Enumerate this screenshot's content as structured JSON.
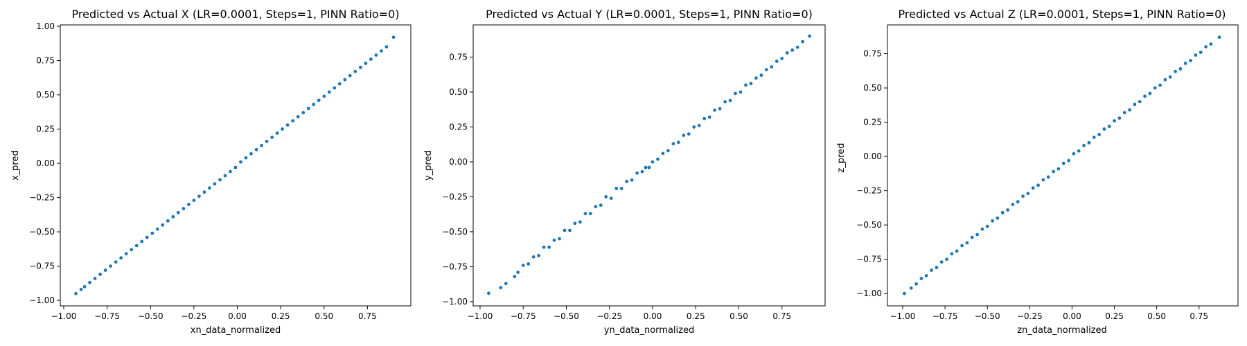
{
  "chart_data": [
    {
      "type": "scatter",
      "title": "Predicted vs Actual X (LR=0.0001, Steps=1, PINN Ratio=0)",
      "xlabel": "xn_data_normalized",
      "ylabel": "x_pred",
      "xlim": [
        -1.02,
        1.0
      ],
      "ylim": [
        -1.04,
        1.01
      ],
      "x_ticks": [
        -1.0,
        -0.75,
        -0.5,
        -0.25,
        0.0,
        0.25,
        0.5,
        0.75
      ],
      "x_tick_labels": [
        "−1.00",
        "−0.75",
        "−0.50",
        "−0.25",
        "0.00",
        "0.25",
        "0.50",
        "0.75"
      ],
      "y_ticks": [
        -1.0,
        -0.75,
        -0.5,
        -0.25,
        0.0,
        0.25,
        0.5,
        0.75,
        1.0
      ],
      "y_tick_labels": [
        "−1.00",
        "−0.75",
        "−0.50",
        "−0.25",
        "0.00",
        "0.25",
        "0.50",
        "0.75",
        "1.00"
      ],
      "grid": false,
      "color": "#1f77b4",
      "points": {
        "x": [
          -0.93,
          -0.9,
          -0.88,
          -0.85,
          -0.82,
          -0.79,
          -0.76,
          -0.73,
          -0.7,
          -0.67,
          -0.64,
          -0.61,
          -0.58,
          -0.55,
          -0.52,
          -0.49,
          -0.46,
          -0.43,
          -0.4,
          -0.37,
          -0.34,
          -0.31,
          -0.28,
          -0.25,
          -0.22,
          -0.19,
          -0.16,
          -0.13,
          -0.1,
          -0.07,
          -0.04,
          -0.01,
          0.02,
          0.05,
          0.08,
          0.11,
          0.14,
          0.17,
          0.2,
          0.23,
          0.26,
          0.29,
          0.32,
          0.35,
          0.38,
          0.41,
          0.44,
          0.47,
          0.5,
          0.53,
          0.56,
          0.59,
          0.62,
          0.65,
          0.68,
          0.71,
          0.74,
          0.77,
          0.8,
          0.83,
          0.86,
          0.9
        ],
        "y": [
          -0.95,
          -0.92,
          -0.9,
          -0.87,
          -0.84,
          -0.81,
          -0.78,
          -0.75,
          -0.72,
          -0.69,
          -0.66,
          -0.63,
          -0.6,
          -0.57,
          -0.54,
          -0.51,
          -0.48,
          -0.45,
          -0.42,
          -0.39,
          -0.36,
          -0.33,
          -0.3,
          -0.27,
          -0.24,
          -0.21,
          -0.18,
          -0.15,
          -0.12,
          -0.09,
          -0.06,
          -0.03,
          0.01,
          0.04,
          0.07,
          0.1,
          0.13,
          0.16,
          0.19,
          0.22,
          0.25,
          0.28,
          0.31,
          0.34,
          0.37,
          0.4,
          0.43,
          0.46,
          0.49,
          0.52,
          0.55,
          0.58,
          0.61,
          0.64,
          0.67,
          0.7,
          0.73,
          0.76,
          0.79,
          0.82,
          0.85,
          0.92
        ]
      }
    },
    {
      "type": "scatter",
      "title": "Predicted vs Actual Y (LR=0.0001, Steps=1, PINN Ratio=0)",
      "xlabel": "yn_data_normalized",
      "ylabel": "y_pred",
      "xlim": [
        -1.04,
        1.0
      ],
      "ylim": [
        -1.03,
        0.98
      ],
      "x_ticks": [
        -1.0,
        -0.75,
        -0.5,
        -0.25,
        0.0,
        0.25,
        0.5,
        0.75
      ],
      "x_tick_labels": [
        "−1.00",
        "−0.75",
        "−0.50",
        "−0.25",
        "0.00",
        "0.25",
        "0.50",
        "0.75"
      ],
      "y_ticks": [
        -1.0,
        -0.75,
        -0.5,
        -0.25,
        0.0,
        0.25,
        0.5,
        0.75
      ],
      "y_tick_labels": [
        "−1.00",
        "−0.75",
        "−0.50",
        "−0.25",
        "0.00",
        "0.25",
        "0.50",
        "0.75"
      ],
      "grid": false,
      "color": "#1f77b4",
      "points": {
        "x": [
          -0.95,
          -0.88,
          -0.85,
          -0.8,
          -0.78,
          -0.75,
          -0.72,
          -0.69,
          -0.66,
          -0.63,
          -0.6,
          -0.57,
          -0.54,
          -0.51,
          -0.48,
          -0.45,
          -0.42,
          -0.39,
          -0.36,
          -0.33,
          -0.3,
          -0.27,
          -0.24,
          -0.21,
          -0.18,
          -0.15,
          -0.12,
          -0.09,
          -0.06,
          -0.04,
          -0.02,
          0.0,
          0.03,
          0.06,
          0.09,
          0.12,
          0.15,
          0.18,
          0.21,
          0.24,
          0.27,
          0.3,
          0.33,
          0.36,
          0.39,
          0.42,
          0.45,
          0.48,
          0.51,
          0.54,
          0.57,
          0.6,
          0.63,
          0.66,
          0.69,
          0.72,
          0.75,
          0.78,
          0.81,
          0.84,
          0.87,
          0.91
        ],
        "y": [
          -0.94,
          -0.9,
          -0.87,
          -0.82,
          -0.79,
          -0.74,
          -0.73,
          -0.68,
          -0.67,
          -0.61,
          -0.61,
          -0.56,
          -0.55,
          -0.49,
          -0.49,
          -0.44,
          -0.43,
          -0.37,
          -0.37,
          -0.32,
          -0.31,
          -0.25,
          -0.26,
          -0.19,
          -0.19,
          -0.14,
          -0.13,
          -0.08,
          -0.07,
          -0.04,
          -0.04,
          0.0,
          0.02,
          0.06,
          0.08,
          0.13,
          0.14,
          0.19,
          0.2,
          0.25,
          0.26,
          0.31,
          0.32,
          0.37,
          0.38,
          0.43,
          0.44,
          0.49,
          0.5,
          0.55,
          0.56,
          0.6,
          0.62,
          0.66,
          0.68,
          0.72,
          0.74,
          0.78,
          0.8,
          0.82,
          0.86,
          0.9
        ]
      }
    },
    {
      "type": "scatter",
      "title": "Predicted vs Actual Z (LR=0.0001, Steps=1, PINN Ratio=0)",
      "xlabel": "zn_data_normalized",
      "ylabel": "z_pred",
      "xlim": [
        -1.09,
        0.98
      ],
      "ylim": [
        -1.09,
        0.96
      ],
      "x_ticks": [
        -1.0,
        -0.75,
        -0.5,
        -0.25,
        0.0,
        0.25,
        0.5,
        0.75
      ],
      "x_tick_labels": [
        "−1.00",
        "−0.75",
        "−0.50",
        "−0.25",
        "0.00",
        "0.25",
        "0.50",
        "0.75"
      ],
      "y_ticks": [
        -1.0,
        -0.75,
        -0.5,
        -0.25,
        0.0,
        0.25,
        0.5,
        0.75
      ],
      "y_tick_labels": [
        "−1.00",
        "−0.75",
        "−0.50",
        "−0.25",
        "0.00",
        "0.25",
        "0.50",
        "0.75"
      ],
      "grid": false,
      "color": "#1f77b4",
      "points": {
        "x": [
          -0.99,
          -0.95,
          -0.92,
          -0.89,
          -0.86,
          -0.83,
          -0.8,
          -0.77,
          -0.74,
          -0.71,
          -0.68,
          -0.65,
          -0.62,
          -0.59,
          -0.56,
          -0.53,
          -0.5,
          -0.47,
          -0.44,
          -0.41,
          -0.38,
          -0.35,
          -0.32,
          -0.29,
          -0.26,
          -0.23,
          -0.2,
          -0.17,
          -0.14,
          -0.11,
          -0.08,
          -0.05,
          -0.02,
          0.01,
          0.04,
          0.07,
          0.1,
          0.13,
          0.16,
          0.19,
          0.22,
          0.25,
          0.28,
          0.31,
          0.34,
          0.37,
          0.4,
          0.43,
          0.46,
          0.49,
          0.52,
          0.55,
          0.58,
          0.61,
          0.64,
          0.67,
          0.7,
          0.73,
          0.76,
          0.79,
          0.82,
          0.87
        ],
        "y": [
          -1.0,
          -0.96,
          -0.93,
          -0.89,
          -0.87,
          -0.83,
          -0.81,
          -0.77,
          -0.75,
          -0.71,
          -0.69,
          -0.65,
          -0.63,
          -0.59,
          -0.57,
          -0.53,
          -0.51,
          -0.47,
          -0.45,
          -0.41,
          -0.39,
          -0.35,
          -0.33,
          -0.29,
          -0.27,
          -0.23,
          -0.21,
          -0.17,
          -0.15,
          -0.11,
          -0.09,
          -0.05,
          -0.03,
          0.02,
          0.04,
          0.08,
          0.1,
          0.14,
          0.16,
          0.2,
          0.22,
          0.26,
          0.28,
          0.32,
          0.34,
          0.38,
          0.4,
          0.44,
          0.46,
          0.5,
          0.52,
          0.56,
          0.58,
          0.62,
          0.64,
          0.68,
          0.7,
          0.74,
          0.76,
          0.8,
          0.82,
          0.87
        ]
      }
    }
  ]
}
